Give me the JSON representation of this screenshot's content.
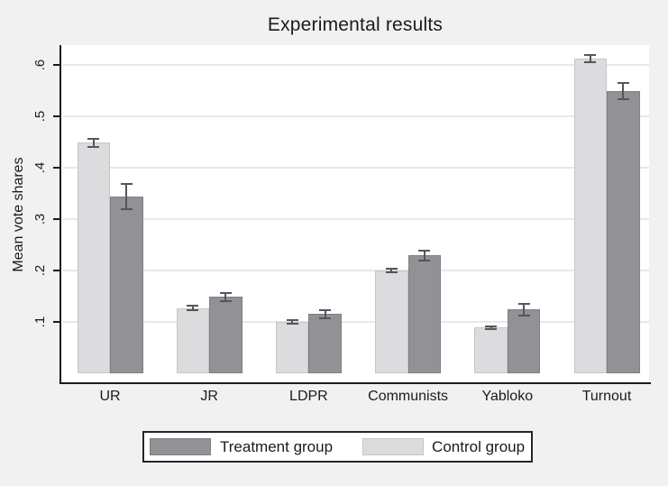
{
  "page": {
    "background": "#f1f1f2",
    "plot_background": "#ffffff",
    "axis_color": "#1a1a1a",
    "gridline_color": "#e8e8ea",
    "text_color": "#1b1b1b"
  },
  "chart_data": {
    "type": "bar",
    "title": "Experimental results",
    "xlabel": "",
    "ylabel": "Mean vote shares",
    "categories": [
      "UR",
      "JR",
      "LDPR",
      "Communists",
      "Yabloko",
      "Turnout"
    ],
    "yticks": [
      ".1",
      ".2",
      ".3",
      ".4",
      ".5",
      ".6"
    ],
    "ytick_values": [
      0.1,
      0.2,
      0.3,
      0.4,
      0.5,
      0.6
    ],
    "ylim": [
      0,
      0.64
    ],
    "grid": "horizontal",
    "error_bars": true,
    "error_color": "#55555a",
    "legend_position": "bottom",
    "series": [
      {
        "name": "Control group",
        "color": "#dcdcde",
        "border": "#c6c6c9",
        "values": [
          0.449,
          0.127,
          0.1,
          0.2,
          0.089,
          0.613
        ],
        "errors": [
          0.008,
          0.004,
          0.003,
          0.004,
          0.003,
          0.007
        ]
      },
      {
        "name": "Treatment group",
        "color": "#919196",
        "border": "#7f7f84",
        "values": [
          0.344,
          0.149,
          0.115,
          0.229,
          0.124,
          0.549
        ],
        "errors": [
          0.024,
          0.008,
          0.008,
          0.009,
          0.011,
          0.016
        ]
      }
    ],
    "legend": [
      {
        "label": "Treatment group",
        "color": "#919196",
        "border": "#7f7f84"
      },
      {
        "label": "Control group",
        "color": "#dcdcde",
        "border": "#c6c6c9"
      }
    ]
  }
}
